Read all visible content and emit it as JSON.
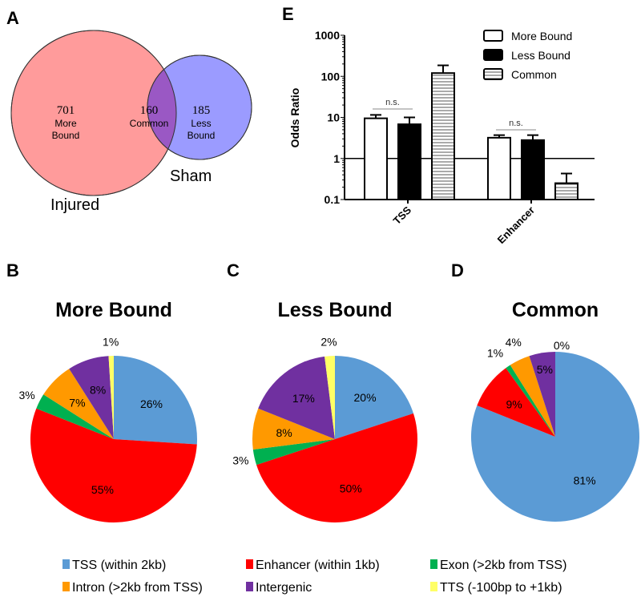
{
  "panel_letters": {
    "a": "A",
    "b": "B",
    "c": "C",
    "d": "D",
    "e": "E"
  },
  "colors": {
    "injured": "#FF9B9B",
    "sham": "#9B9BFF",
    "overlap": "#9A58C4",
    "tss": "#5B9BD5",
    "enhancer": "#FF0000",
    "exon": "#00B050",
    "intron": "#FF9900",
    "intergenic": "#7030A0",
    "tts": "#FFFF66"
  },
  "venn": {
    "sets": [
      {
        "name": "Injured"
      },
      {
        "name": "Sham"
      }
    ],
    "regions": [
      {
        "count": "701",
        "line1": "More",
        "line2": "Bound"
      },
      {
        "count": "160",
        "line1": "Common",
        "line2": ""
      },
      {
        "count": "185",
        "line1": "Less",
        "line2": "Bound"
      }
    ]
  },
  "chart_data": [
    {
      "type": "bar",
      "panel": "E",
      "ylabel": "Odds Ratio",
      "yscale": "log",
      "ylim": [
        0.1,
        1000
      ],
      "yticks": [
        "0.1",
        "1",
        "10",
        "100",
        "1000"
      ],
      "ytick_values": [
        0.1,
        1,
        10,
        100,
        1000
      ],
      "reference_line": 1,
      "categories": [
        "TSS",
        "Enhancer"
      ],
      "series": [
        {
          "name": "More Bound",
          "fill": "white",
          "values": [
            9.5,
            3.2
          ],
          "error_upper": [
            11.5,
            3.7
          ]
        },
        {
          "name": "Less Bound",
          "fill": "black",
          "values": [
            6.8,
            2.8
          ],
          "error_upper": [
            10,
            3.7
          ]
        },
        {
          "name": "Common",
          "fill": "striped",
          "values": [
            120,
            0.25
          ],
          "error_upper": [
            185,
            0.43
          ]
        }
      ],
      "annotations": [
        {
          "text": "n.s.",
          "category": "TSS"
        },
        {
          "text": "n.s.",
          "category": "Enhancer"
        }
      ],
      "legend": "top-right"
    },
    {
      "type": "pie",
      "panel": "B",
      "title": "More Bound",
      "labels": [
        "TSS",
        "Enhancer",
        "Exon",
        "Intron",
        "Intergenic",
        "TTS"
      ],
      "values": [
        26,
        55,
        3,
        7,
        8,
        1
      ],
      "value_labels": [
        "26%",
        "55%",
        "3%",
        "7%",
        "8%",
        "1%"
      ]
    },
    {
      "type": "pie",
      "panel": "C",
      "title": "Less Bound",
      "labels": [
        "TSS",
        "Enhancer",
        "Exon",
        "Intron",
        "Intergenic",
        "TTS"
      ],
      "values": [
        20,
        50,
        3,
        8,
        17,
        2
      ],
      "value_labels": [
        "20%",
        "50%",
        "3%",
        "8%",
        "17%",
        "2%"
      ]
    },
    {
      "type": "pie",
      "panel": "D",
      "title": "Common",
      "labels": [
        "TSS",
        "Enhancer",
        "Exon",
        "Intron",
        "Intergenic",
        "TTS"
      ],
      "values": [
        81,
        9,
        1,
        4,
        5,
        0
      ],
      "value_labels": [
        "81%",
        "9%",
        "1%",
        "4%",
        "5%",
        "0%"
      ]
    }
  ],
  "pie_legend": [
    {
      "key": "tss",
      "label": "TSS (within 2kb)"
    },
    {
      "key": "enhancer",
      "label": "Enhancer (within 1kb)"
    },
    {
      "key": "exon",
      "label": "Exon (>2kb from TSS)"
    },
    {
      "key": "intron",
      "label": "Intron (>2kb from TSS)"
    },
    {
      "key": "intergenic",
      "label": "Intergenic"
    },
    {
      "key": "tts",
      "label": "TTS (-100bp to +1kb)"
    }
  ]
}
